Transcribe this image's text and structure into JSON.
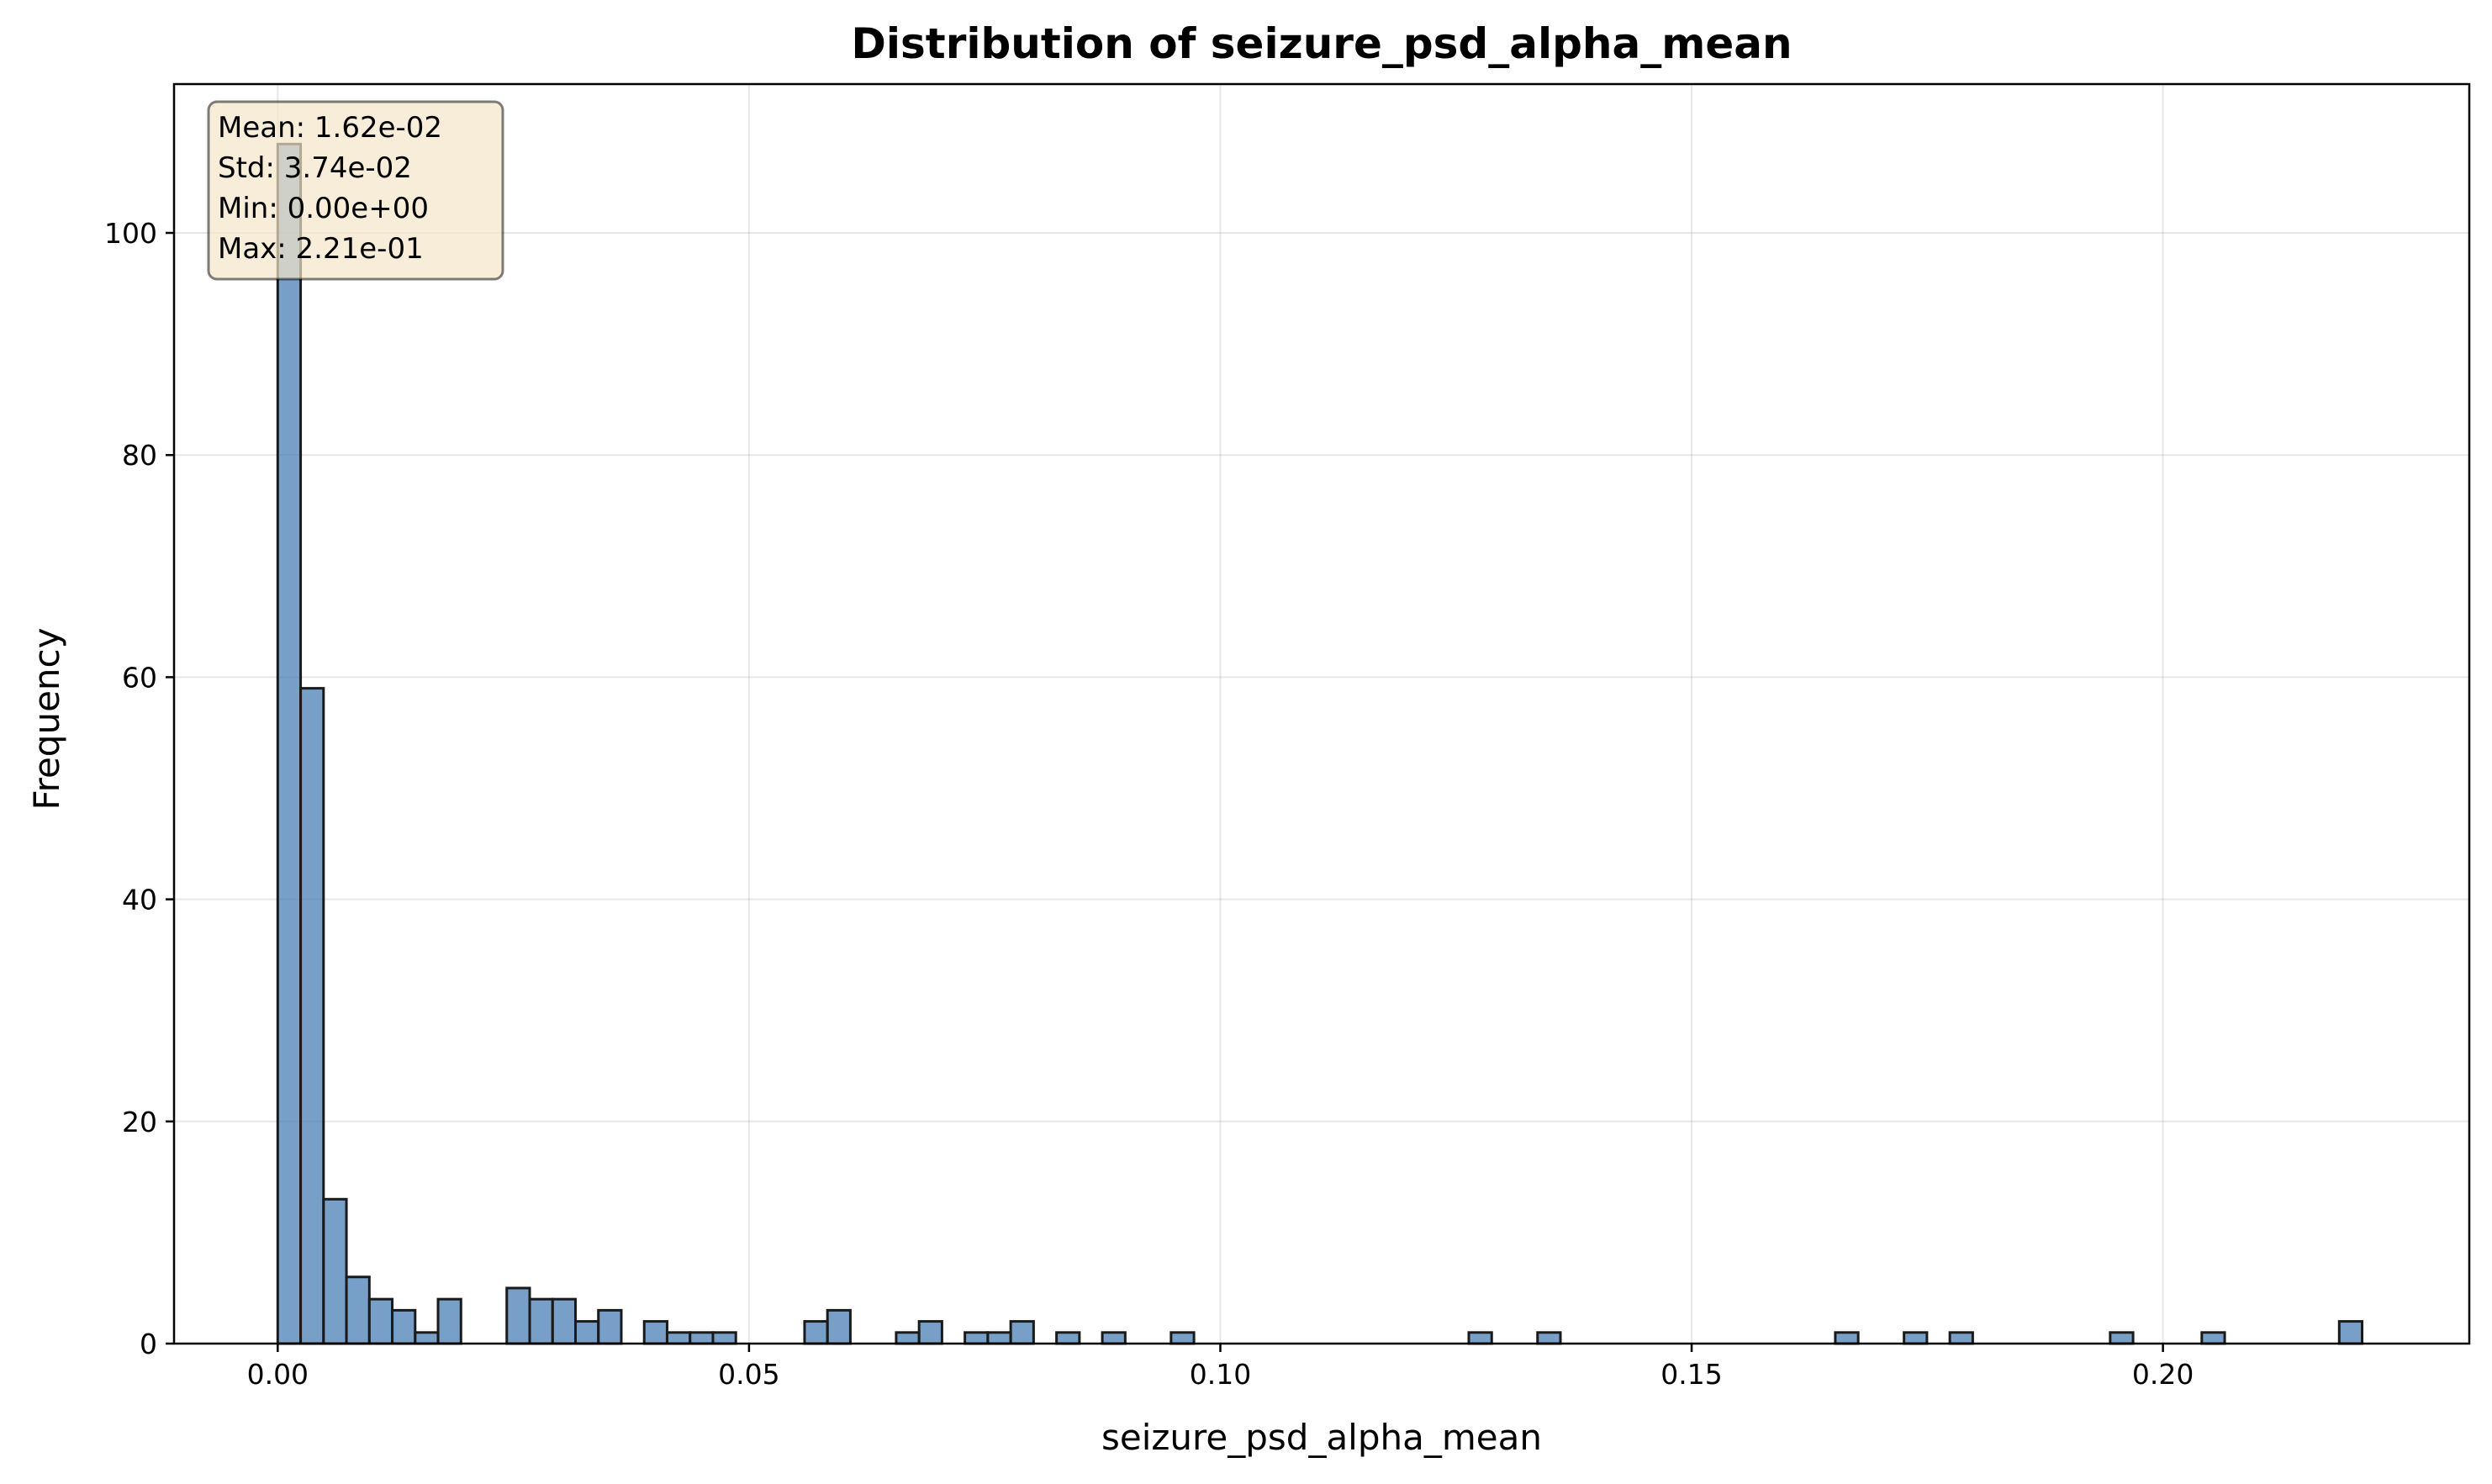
{
  "chart_data": {
    "type": "bar",
    "title": "Distribution of seizure_psd_alpha_mean",
    "xlabel": "seizure_psd_alpha_mean",
    "ylabel": "Frequency",
    "xlim": [
      -0.011,
      0.2325
    ],
    "ylim": [
      0,
      113.4
    ],
    "bin_start": 0.0,
    "bin_width": 0.00243,
    "x_ticks": [
      0.0,
      0.05,
      0.1,
      0.15,
      0.2
    ],
    "x_tick_labels": [
      "0.00",
      "0.05",
      "0.10",
      "0.15",
      "0.20"
    ],
    "y_ticks": [
      0,
      20,
      40,
      60,
      80,
      100
    ],
    "y_tick_labels": [
      "0",
      "20",
      "40",
      "60",
      "80",
      "100"
    ],
    "grid": true,
    "bar_color": "#4a7fb5",
    "bar_edge_color": "#1a1a1a",
    "counts": [
      108,
      59,
      13,
      6,
      4,
      3,
      1,
      4,
      0,
      0,
      0,
      4,
      4,
      2,
      3,
      0,
      2,
      1,
      1,
      0,
      0,
      0,
      0,
      0,
      0,
      0,
      0,
      0,
      0,
      0,
      0,
      0,
      0,
      0,
      0,
      0,
      0,
      0,
      0,
      0,
      0,
      0,
      0,
      0,
      0,
      0,
      0,
      0,
      0,
      0,
      0,
      0,
      0,
      0,
      0,
      0,
      0,
      0,
      0,
      0,
      0,
      0,
      0,
      0,
      0,
      0,
      0,
      0,
      0,
      0,
      0,
      0,
      0,
      0,
      0,
      0,
      0,
      0,
      0,
      0,
      0,
      0,
      0,
      0,
      0,
      0,
      0,
      0,
      0,
      0,
      0
    ],
    "extra_bins": [
      {
        "bin": 10,
        "count": 5
      },
      {
        "bin": 19,
        "count": 1
      },
      {
        "bin": 23,
        "count": 2
      },
      {
        "bin": 24,
        "count": 3
      },
      {
        "bin": 27,
        "count": 1
      },
      {
        "bin": 28,
        "count": 2
      },
      {
        "bin": 30,
        "count": 1
      },
      {
        "bin": 31,
        "count": 1
      },
      {
        "bin": 32,
        "count": 2
      },
      {
        "bin": 34,
        "count": 1
      },
      {
        "bin": 36,
        "count": 1
      },
      {
        "bin": 39,
        "count": 1
      },
      {
        "bin": 52,
        "count": 1
      },
      {
        "bin": 55,
        "count": 1
      },
      {
        "bin": 68,
        "count": 1
      },
      {
        "bin": 71,
        "count": 1
      },
      {
        "bin": 73,
        "count": 1
      },
      {
        "bin": 80,
        "count": 1
      },
      {
        "bin": 84,
        "count": 1
      },
      {
        "bin": 90,
        "count": 2
      }
    ],
    "stats": {
      "mean": "Mean: 1.62e-02",
      "std": "Std: 3.74e-02",
      "min": "Min: 0.00e+00",
      "max": "Max: 2.21e-01"
    },
    "stats_box_color": "#f5e6c8"
  }
}
